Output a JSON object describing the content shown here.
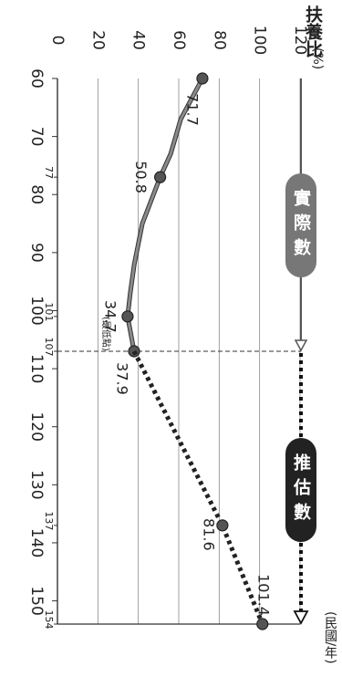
{
  "chart_data": {
    "type": "line",
    "orientation": "rotated-90-clockwise",
    "ylabel": "扶養比",
    "yunit": "(%)",
    "xlabel": "(民國/年)",
    "ylim": [
      0,
      120
    ],
    "xlim": [
      60,
      154
    ],
    "y_ticks": [
      0,
      20,
      40,
      60,
      80,
      100,
      120
    ],
    "x_ticks": [
      "60",
      "70",
      "80",
      "90",
      "100",
      "110",
      "120",
      "130",
      "140",
      "150"
    ],
    "extra_x_ticks": [
      "77",
      "101",
      "107",
      "137",
      "154"
    ],
    "gridlines": true,
    "series": [
      {
        "name": "實際數",
        "style": "solid",
        "color": "#6b6b6b",
        "points": [
          {
            "x": 60,
            "y": 71.7,
            "label": "71.7",
            "marker": true
          },
          {
            "x": 67,
            "y": 61.0,
            "marker": false
          },
          {
            "x": 73,
            "y": 56.0,
            "marker": false
          },
          {
            "x": 77,
            "y": 50.8,
            "label": "50.8",
            "marker": true
          },
          {
            "x": 85,
            "y": 42.0,
            "marker": false
          },
          {
            "x": 92,
            "y": 38.0,
            "marker": false
          },
          {
            "x": 97,
            "y": 36.0,
            "marker": false
          },
          {
            "x": 101,
            "y": 34.7,
            "label": "34.7",
            "marker": true
          },
          {
            "x": 107,
            "y": 37.9,
            "label": "37.9",
            "marker": true
          }
        ]
      },
      {
        "name": "推估數",
        "style": "dotted",
        "color": "#222222",
        "points": [
          {
            "x": 107,
            "y": 37.9,
            "marker": false
          },
          {
            "x": 137,
            "y": 81.6,
            "label": "81.6",
            "marker": true
          },
          {
            "x": 154,
            "y": 101.4,
            "label": "101.4",
            "marker": true
          }
        ]
      }
    ],
    "annotations": [
      {
        "text": "(最低點)",
        "x": 104,
        "y": 24
      }
    ],
    "legend": [
      {
        "label": "實際數",
        "bg": "#777777"
      },
      {
        "label": "推估數",
        "bg": "#222222"
      }
    ]
  }
}
